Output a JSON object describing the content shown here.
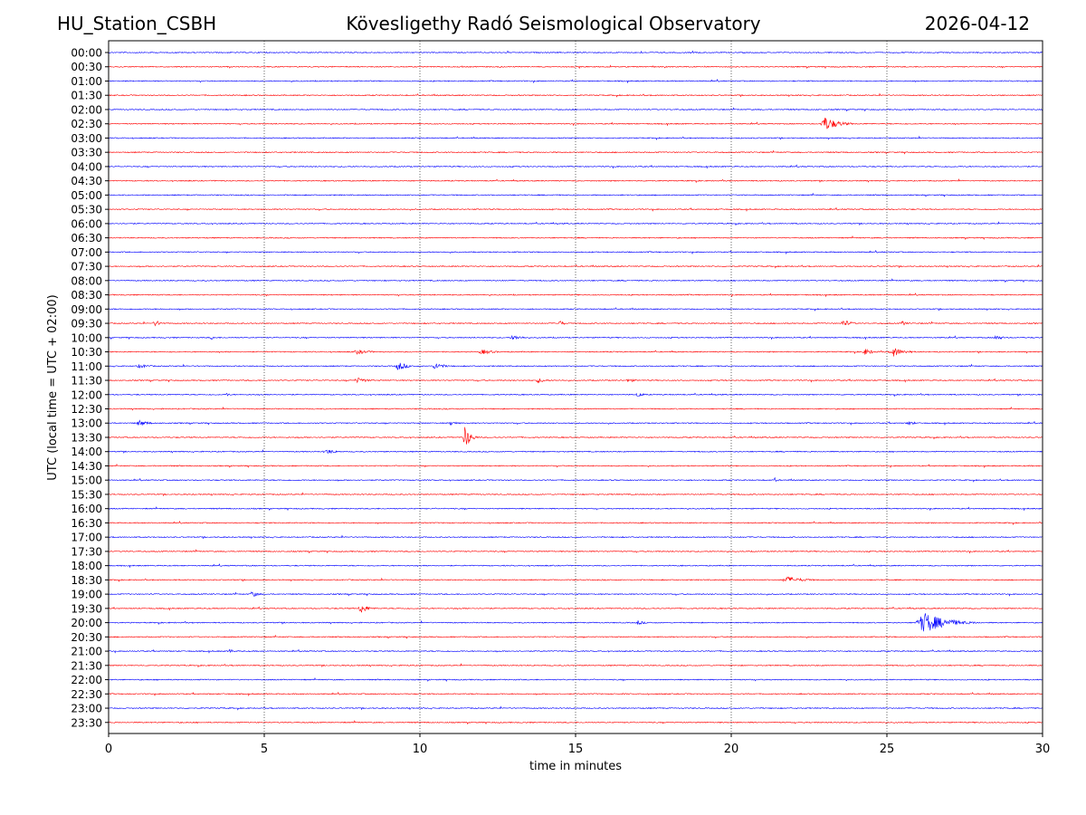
{
  "header": {
    "station": "HU_Station_CSBH",
    "observatory": "Kövesligethy Radó Seismological Observatory",
    "date": "2026-04-12"
  },
  "chart_data": {
    "type": "line",
    "title": "Kövesligethy Radó Seismological Observatory",
    "xlabel": "time in minutes",
    "ylabel": "UTC (local time = UTC + 02:00)",
    "xlim": [
      0,
      30
    ],
    "xticks": [
      "0",
      "5",
      "10",
      "15",
      "20",
      "25",
      "30"
    ],
    "x_gridlines": [
      5,
      10,
      15,
      20,
      25
    ],
    "grid": "vertical dotted",
    "row_labels": [
      "00:00",
      "00:30",
      "01:00",
      "01:30",
      "02:00",
      "02:30",
      "03:00",
      "03:30",
      "04:00",
      "04:30",
      "05:00",
      "05:30",
      "06:00",
      "06:30",
      "07:00",
      "07:30",
      "08:00",
      "08:30",
      "09:00",
      "09:30",
      "10:00",
      "10:30",
      "11:00",
      "11:30",
      "12:00",
      "12:30",
      "13:00",
      "13:30",
      "14:00",
      "14:30",
      "15:00",
      "15:30",
      "16:00",
      "16:30",
      "17:00",
      "17:30",
      "18:00",
      "18:30",
      "19:00",
      "19:30",
      "20:00",
      "20:30",
      "21:00",
      "21:30",
      "22:00",
      "22:30",
      "23:00",
      "23:30"
    ],
    "trace_colors": [
      "#0000ff",
      "#ff0000"
    ],
    "events": [
      {
        "row": "02:30",
        "minute": 23.0,
        "amplitude": 0.9,
        "duration": 1.2
      },
      {
        "row": "09:30",
        "minute": 1.5,
        "amplitude": 0.4,
        "duration": 0.6
      },
      {
        "row": "09:30",
        "minute": 14.5,
        "amplitude": 0.4,
        "duration": 0.4
      },
      {
        "row": "09:30",
        "minute": 23.6,
        "amplitude": 0.45,
        "duration": 0.8
      },
      {
        "row": "09:30",
        "minute": 25.5,
        "amplitude": 0.35,
        "duration": 0.4
      },
      {
        "row": "10:00",
        "minute": 3.3,
        "amplitude": 0.3,
        "duration": 0.3
      },
      {
        "row": "10:00",
        "minute": 13.0,
        "amplitude": 0.3,
        "duration": 1.0
      },
      {
        "row": "10:00",
        "minute": 28.5,
        "amplitude": 0.3,
        "duration": 0.8
      },
      {
        "row": "10:30",
        "minute": 8.0,
        "amplitude": 0.3,
        "duration": 1.2
      },
      {
        "row": "10:30",
        "minute": 12.0,
        "amplitude": 0.3,
        "duration": 1.2
      },
      {
        "row": "10:30",
        "minute": 24.3,
        "amplitude": 0.4,
        "duration": 0.8
      },
      {
        "row": "10:30",
        "minute": 25.2,
        "amplitude": 0.6,
        "duration": 1.0
      },
      {
        "row": "11:00",
        "minute": 9.3,
        "amplitude": 0.55,
        "duration": 0.8
      },
      {
        "row": "11:00",
        "minute": 10.5,
        "amplitude": 0.45,
        "duration": 0.8
      },
      {
        "row": "11:00",
        "minute": 1.0,
        "amplitude": 0.25,
        "duration": 1.0
      },
      {
        "row": "11:30",
        "minute": 8.0,
        "amplitude": 0.35,
        "duration": 1.0
      },
      {
        "row": "11:30",
        "minute": 13.8,
        "amplitude": 0.3,
        "duration": 0.8
      },
      {
        "row": "11:30",
        "minute": 16.7,
        "amplitude": 0.3,
        "duration": 0.5
      },
      {
        "row": "12:00",
        "minute": 17.0,
        "amplitude": 0.35,
        "duration": 0.5
      },
      {
        "row": "12:00",
        "minute": 3.8,
        "amplitude": 0.25,
        "duration": 0.3
      },
      {
        "row": "13:00",
        "minute": 1.0,
        "amplitude": 0.4,
        "duration": 0.8
      },
      {
        "row": "13:00",
        "minute": 11.0,
        "amplitude": 0.3,
        "duration": 0.6
      },
      {
        "row": "13:00",
        "minute": 25.7,
        "amplitude": 0.3,
        "duration": 0.6
      },
      {
        "row": "13:30",
        "minute": 11.45,
        "amplitude": 1.5,
        "duration": 0.5
      },
      {
        "row": "14:00",
        "minute": 7.0,
        "amplitude": 0.3,
        "duration": 1.0
      },
      {
        "row": "15:00",
        "minute": 21.4,
        "amplitude": 0.3,
        "duration": 0.3
      },
      {
        "row": "18:30",
        "minute": 21.8,
        "amplitude": 0.4,
        "duration": 1.6
      },
      {
        "row": "19:00",
        "minute": 4.6,
        "amplitude": 0.45,
        "duration": 0.5
      },
      {
        "row": "19:30",
        "minute": 8.1,
        "amplitude": 0.7,
        "duration": 0.6
      },
      {
        "row": "20:00",
        "minute": 17.0,
        "amplitude": 0.3,
        "duration": 0.6
      },
      {
        "row": "20:00",
        "minute": 26.2,
        "amplitude": 1.3,
        "duration": 2.0
      },
      {
        "row": "21:00",
        "minute": 3.9,
        "amplitude": 0.35,
        "duration": 0.3
      }
    ]
  }
}
